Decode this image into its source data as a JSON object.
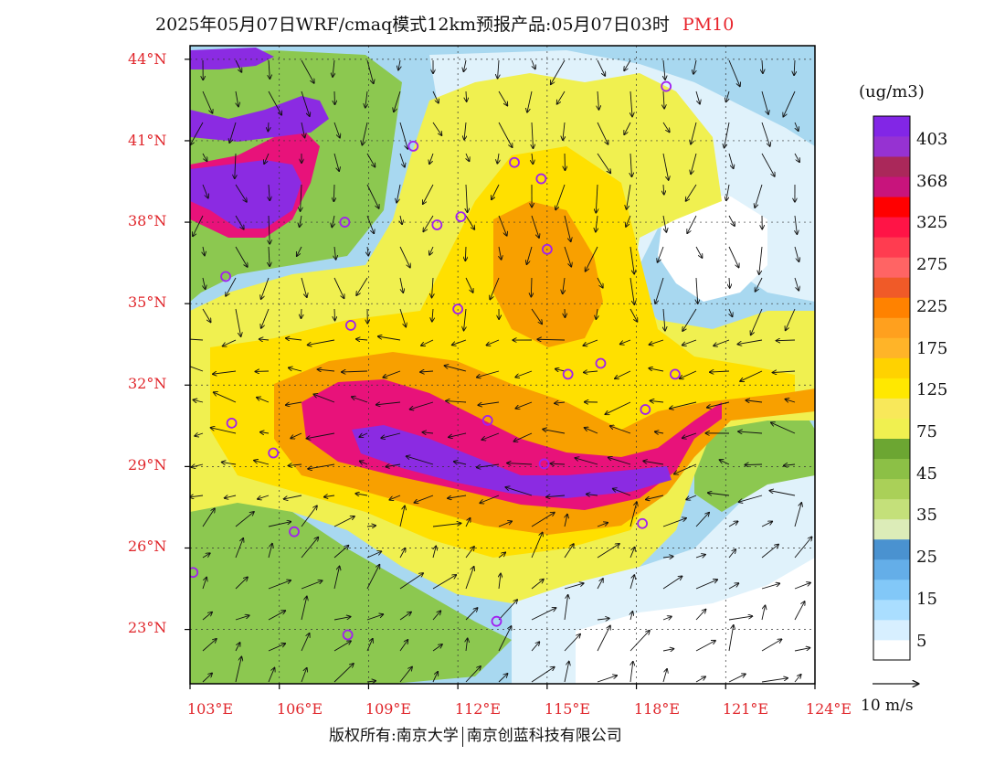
{
  "title": {
    "main": "2025年05月07日WRF/cmaq模式12km预报产品:05月07日03时",
    "pollutant": "PM10"
  },
  "map": {
    "lat_labels": [
      "44°N",
      "41°N",
      "38°N",
      "35°N",
      "32°N",
      "29°N",
      "26°N",
      "23°N"
    ],
    "lon_labels": [
      "103°E",
      "106°E",
      "109°E",
      "112°E",
      "115°E",
      "118°E",
      "121°E",
      "124°E"
    ],
    "lat_range": [
      21.0,
      44.5
    ],
    "lon_range": [
      103.0,
      124.0
    ],
    "grid": true,
    "colors": {
      "very_high": "#8b2be2",
      "high": "#e8127a",
      "elevated": "#f8a000",
      "moderate": "#ffe000",
      "moderate_light": "#f0f050",
      "good": "#8cc850",
      "clean": "#a8d8f0",
      "very_clean": "#e0f2fb",
      "ocean_blank": "#ffffff",
      "site_marker": "#a020f0"
    }
  },
  "colorbar": {
    "units": "(ug/m3)",
    "labels": [
      "403",
      "368",
      "325",
      "275",
      "225",
      "175",
      "125",
      "75",
      "45",
      "35",
      "25",
      "15",
      "5"
    ],
    "colors": [
      "#ffffff",
      "#d7efff",
      "#aadeff",
      "#82c8f8",
      "#64aee8",
      "#4a92d0",
      "#dcecb8",
      "#c4e07a",
      "#aad058",
      "#8cc046",
      "#6ca632",
      "#f0f050",
      "#f8e85a",
      "#ffe800",
      "#ffd200",
      "#ffb428",
      "#ffa01e",
      "#ff8200",
      "#f05a28",
      "#ff6464",
      "#ff3c50",
      "#ff1446",
      "#ff0000",
      "#c8147c",
      "#aa285a",
      "#9632d2",
      "#8226e6"
    ]
  },
  "wind_reference": {
    "label": "10 m/s"
  },
  "credit": {
    "left": "版权所有:南京大学",
    "right": "南京创蓝科技有限公司"
  }
}
